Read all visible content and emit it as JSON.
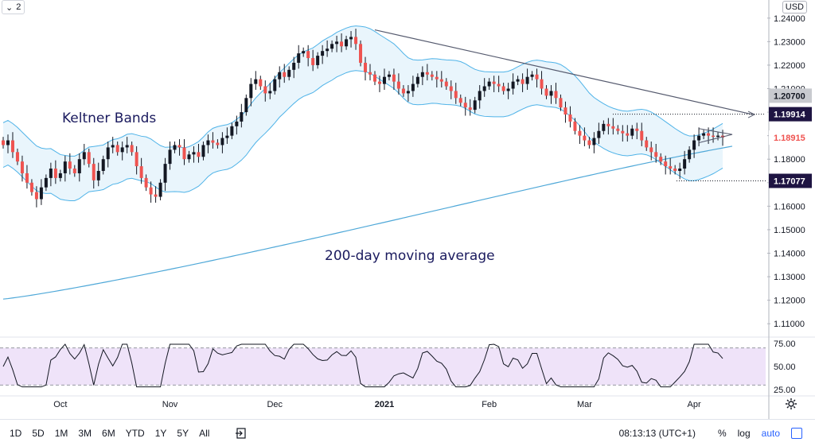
{
  "chart_data": {
    "type": "candlestick",
    "title": "",
    "annotations": [
      {
        "text": "Keltner Bands"
      },
      {
        "text": "200-day moving average"
      }
    ],
    "currency": "USD",
    "pane_count_label": "2",
    "price_axis": {
      "ticks": [
        "1.24000",
        "1.23000",
        "1.22000",
        "1.21000",
        "1.20000",
        "1.19000",
        "1.18000",
        "1.17000",
        "1.16000",
        "1.15000",
        "1.14000",
        "1.13000",
        "1.12000",
        "1.11000"
      ],
      "ylim": [
        1.105,
        1.245
      ]
    },
    "price_labels": [
      {
        "text": "1.20700",
        "value": 1.207,
        "style": "gray"
      },
      {
        "text": "1.19914",
        "value": 1.19914,
        "style": "dark"
      },
      {
        "text": "1.18915",
        "value": 1.18915,
        "style": "red"
      },
      {
        "text": "1.17077",
        "value": 1.17077,
        "style": "dark"
      }
    ],
    "rsi_axis": {
      "ticks": [
        "75.00",
        "50.00",
        "25.00"
      ],
      "ylim": [
        20,
        80
      ],
      "band": [
        30,
        70
      ]
    },
    "x_axis": {
      "labels": [
        {
          "text": "Oct",
          "index": 12,
          "bold": false
        },
        {
          "text": "Nov",
          "index": 35,
          "bold": false
        },
        {
          "text": "Dec",
          "index": 57,
          "bold": false
        },
        {
          "text": "2021",
          "index": 80,
          "bold": true
        },
        {
          "text": "Feb",
          "index": 102,
          "bold": false
        },
        {
          "text": "Mar",
          "index": 122,
          "bold": false
        },
        {
          "text": "Apr",
          "index": 145,
          "bold": false
        }
      ],
      "bar_count": 154
    },
    "ohlc_closes_sampled": [
      1.186,
      1.188,
      1.183,
      1.179,
      1.174,
      1.17,
      1.166,
      1.163,
      1.168,
      1.172,
      1.176,
      1.172,
      1.174,
      1.179,
      1.176,
      1.174,
      1.18,
      1.183,
      1.178,
      1.171,
      1.175,
      1.18,
      1.185,
      1.186,
      1.183,
      1.185,
      1.186,
      1.183,
      1.177,
      1.172,
      1.168,
      1.165,
      1.164,
      1.17,
      1.178,
      1.184,
      1.186,
      1.185,
      1.18,
      1.182,
      1.183,
      1.181,
      1.186,
      1.188,
      1.187,
      1.186,
      1.189,
      1.19,
      1.194,
      1.196,
      1.2,
      1.206,
      1.212,
      1.214,
      1.211,
      1.208,
      1.209,
      1.214,
      1.217,
      1.215,
      1.218,
      1.221,
      1.225,
      1.226,
      1.223,
      1.22,
      1.224,
      1.226,
      1.227,
      1.229,
      1.23,
      1.228,
      1.231,
      1.232,
      1.229,
      1.221,
      1.217,
      1.216,
      1.213,
      1.212,
      1.215,
      1.216,
      1.213,
      1.21,
      1.208,
      1.209,
      1.212,
      1.215,
      1.217,
      1.216,
      1.215,
      1.214,
      1.213,
      1.211,
      1.209,
      1.206,
      1.204,
      1.202,
      1.201,
      1.205,
      1.209,
      1.211,
      1.213,
      1.212,
      1.211,
      1.209,
      1.21,
      1.213,
      1.214,
      1.212,
      1.215,
      1.216,
      1.214,
      1.21,
      1.207,
      1.209,
      1.206,
      1.202,
      1.199,
      1.196,
      1.192,
      1.19,
      1.188,
      1.186,
      1.189,
      1.192,
      1.195,
      1.194,
      1.193,
      1.192,
      1.191,
      1.19,
      1.193,
      1.192,
      1.188,
      1.185,
      1.183,
      1.181,
      1.179,
      1.177,
      1.176,
      1.175,
      1.176,
      1.18,
      1.184,
      1.188,
      1.19,
      1.191,
      1.19,
      1.1895,
      1.19,
      1.1892
    ]
  },
  "toolbar": {
    "timeframes": [
      "1D",
      "5D",
      "1M",
      "3M",
      "6M",
      "YTD",
      "1Y",
      "5Y",
      "All"
    ],
    "clock": "08:13:13 (UTC+1)",
    "percent": "%",
    "log": "log",
    "auto": "auto"
  },
  "colors": {
    "up": "#26a69a",
    "down": "#ef5350",
    "keltner": "#4fb3e8",
    "ma200": "#4fa8d8",
    "rsi": "#131722",
    "rsiBand": "#efe3f9"
  }
}
